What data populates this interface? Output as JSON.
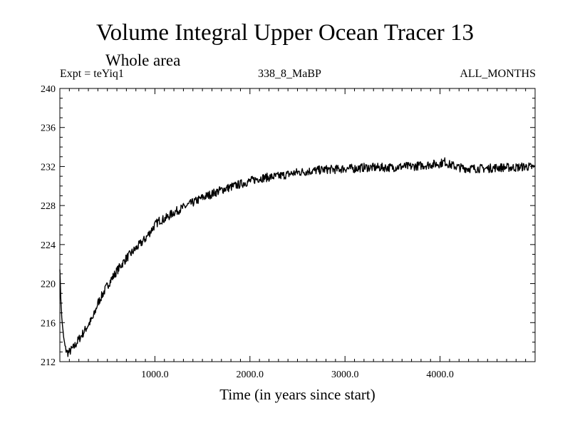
{
  "chart_data": {
    "type": "line",
    "title": "Volume Integral Upper Ocean Tracer 13",
    "subtitle": "Whole area",
    "experiment_label": "Expt = teYiq1",
    "run_label": "338_8_MaBP",
    "months_label": "ALL_MONTHS",
    "xlabel": "Time (in years since start)",
    "ylabel": "",
    "xlim": [
      0,
      5000
    ],
    "ylim": [
      212,
      240
    ],
    "x_ticks": [
      1000,
      2000,
      3000,
      4000
    ],
    "x_tick_labels": [
      "1000.0",
      "2000.0",
      "3000.0",
      "4000.0"
    ],
    "y_ticks": [
      212,
      216,
      220,
      224,
      228,
      232,
      236,
      240
    ],
    "y_tick_labels": [
      "212",
      "216",
      "220",
      "224",
      "228",
      "232",
      "236",
      "240"
    ],
    "series": [
      {
        "name": "Upper Ocean Tracer 13",
        "color": "#000000",
        "x": [
          0,
          10,
          20,
          40,
          60,
          80,
          100,
          150,
          200,
          250,
          300,
          350,
          400,
          500,
          600,
          700,
          800,
          900,
          1000,
          1050,
          1100,
          1200,
          1300,
          1400,
          1500,
          1600,
          1700,
          1800,
          1900,
          2000,
          2100,
          2200,
          2300,
          2400,
          2500,
          2600,
          2700,
          2800,
          2900,
          3000,
          3100,
          3200,
          3300,
          3400,
          3500,
          3600,
          3700,
          3800,
          3900,
          4000,
          4050,
          4100,
          4200,
          4300,
          4400,
          4500,
          4600,
          4700,
          4800,
          4900,
          5000
        ],
        "values": [
          221.5,
          218.5,
          216.5,
          214.5,
          213.3,
          212.9,
          213.0,
          213.5,
          214.3,
          215.0,
          215.8,
          216.5,
          218.0,
          219.8,
          221.3,
          222.6,
          223.6,
          224.6,
          226.0,
          226.5,
          226.6,
          227.3,
          227.8,
          228.3,
          228.8,
          229.2,
          229.6,
          229.9,
          230.2,
          230.5,
          230.8,
          230.9,
          231.0,
          231.2,
          231.4,
          231.5,
          231.6,
          231.7,
          231.7,
          231.8,
          231.8,
          231.9,
          231.9,
          231.9,
          231.9,
          232.0,
          232.0,
          232.1,
          232.2,
          232.3,
          232.5,
          232.2,
          231.9,
          231.8,
          231.8,
          231.8,
          231.9,
          231.9,
          231.9,
          232.0,
          231.9
        ]
      }
    ]
  }
}
